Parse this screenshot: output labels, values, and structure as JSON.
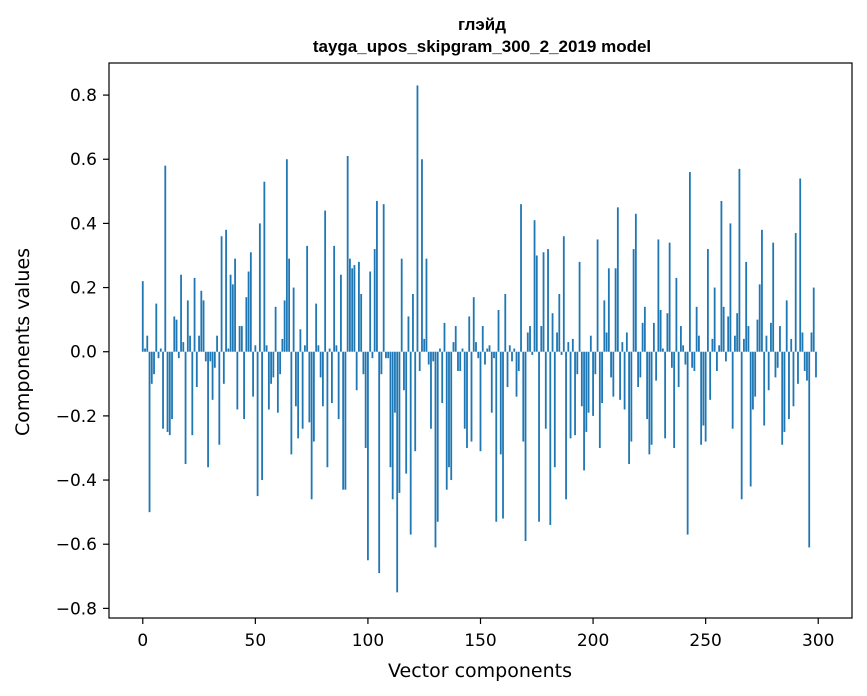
{
  "chart_data": {
    "type": "bar",
    "title": "глэйд",
    "subtitle": "tayga_upos_skipgram_300_2_2019 model",
    "xlabel": "Vector components",
    "ylabel": "Components values",
    "xlim": [
      -15,
      315
    ],
    "ylim": [
      -0.83,
      0.9
    ],
    "xticks": [
      0,
      50,
      100,
      150,
      200,
      250,
      300
    ],
    "xtick_labels": [
      "0",
      "50",
      "100",
      "150",
      "200",
      "250",
      "300"
    ],
    "yticks": [
      -0.8,
      -0.6,
      -0.4,
      -0.2,
      0.0,
      0.2,
      0.4,
      0.6,
      0.8
    ],
    "ytick_labels": [
      "−0.8",
      "−0.6",
      "−0.4",
      "−0.2",
      "0.0",
      "0.2",
      "0.4",
      "0.6",
      "0.8"
    ],
    "bar_color": "#1f77b4",
    "grid": false,
    "x_start": 0,
    "values": [
      0.22,
      0.01,
      0.05,
      -0.5,
      -0.1,
      -0.07,
      0.15,
      -0.02,
      0.01,
      -0.24,
      0.58,
      -0.25,
      -0.26,
      -0.21,
      0.11,
      0.1,
      -0.02,
      0.24,
      0.03,
      -0.35,
      0.16,
      0.05,
      -0.26,
      0.23,
      -0.11,
      0.05,
      0.19,
      0.16,
      -0.03,
      -0.36,
      -0.03,
      -0.15,
      -0.05,
      0.05,
      -0.29,
      0.36,
      -0.1,
      0.38,
      0.01,
      0.24,
      0.21,
      0.29,
      -0.18,
      0.08,
      0.08,
      -0.21,
      0.17,
      0.25,
      0.31,
      -0.14,
      0.02,
      -0.45,
      0.4,
      -0.4,
      0.53,
      0.02,
      -0.18,
      -0.1,
      -0.08,
      0.14,
      -0.19,
      -0.07,
      0.04,
      0.16,
      0.6,
      0.29,
      -0.32,
      0.2,
      -0.17,
      -0.27,
      0.07,
      -0.24,
      0.02,
      0.33,
      -0.22,
      -0.46,
      -0.28,
      0.15,
      0.02,
      -0.08,
      -0.17,
      0.44,
      -0.36,
      0.01,
      -0.16,
      0.33,
      0.02,
      -0.21,
      0.24,
      -0.43,
      -0.43,
      0.61,
      0.29,
      0.26,
      0.27,
      -0.12,
      0.28,
      0.18,
      -0.07,
      -0.3,
      -0.65,
      0.25,
      -0.02,
      0.32,
      0.47,
      -0.69,
      -0.07,
      0.46,
      -0.02,
      -0.02,
      -0.36,
      -0.46,
      -0.19,
      -0.75,
      -0.44,
      0.29,
      -0.12,
      -0.38,
      0.11,
      -0.57,
      0.18,
      -0.31,
      0.83,
      -0.06,
      0.6,
      0.04,
      0.29,
      -0.04,
      -0.24,
      -0.03,
      -0.61,
      -0.53,
      0.01,
      -0.16,
      0.09,
      -0.43,
      -0.36,
      -0.4,
      0.03,
      0.08,
      -0.06,
      -0.06,
      0.01,
      -0.24,
      -0.3,
      0.11,
      -0.28,
      0.17,
      0.03,
      -0.02,
      -0.31,
      0.08,
      -0.04,
      0.01,
      0.02,
      -0.19,
      -0.02,
      -0.53,
      0.13,
      -0.32,
      -0.52,
      0.18,
      -0.11,
      0.02,
      -0.03,
      0.01,
      -0.14,
      -0.06,
      0.46,
      -0.28,
      -0.59,
      0.06,
      0.08,
      -0.01,
      0.41,
      0.3,
      -0.53,
      0.08,
      0.31,
      -0.24,
      0.32,
      -0.54,
      0.12,
      -0.36,
      0.06,
      0.18,
      -0.01,
      0.36,
      -0.46,
      0.03,
      -0.27,
      0.04,
      -0.26,
      -0.07,
      0.28,
      -0.17,
      -0.37,
      -0.25,
      -0.19,
      0.05,
      -0.2,
      -0.07,
      0.35,
      -0.3,
      -0.16,
      0.16,
      0.06,
      0.26,
      -0.08,
      -0.14,
      0.26,
      0.45,
      -0.15,
      0.03,
      -0.18,
      0.06,
      -0.35,
      -0.28,
      0.32,
      0.43,
      -0.11,
      -0.08,
      0.09,
      0.14,
      -0.21,
      -0.32,
      -0.29,
      0.09,
      -0.09,
      0.35,
      0.13,
      0.01,
      -0.27,
      0.12,
      0.34,
      -0.05,
      -0.3,
      0.23,
      -0.11,
      0.08,
      0.02,
      -0.04,
      -0.57,
      0.56,
      -0.05,
      -0.06,
      0.14,
      0.05,
      -0.29,
      -0.23,
      -0.28,
      0.32,
      -0.15,
      0.04,
      0.2,
      -0.06,
      0.02,
      0.47,
      0.14,
      -0.03,
      0.11,
      0.4,
      -0.24,
      0.05,
      0.12,
      0.57,
      -0.46,
      0.04,
      0.28,
      0.08,
      -0.42,
      -0.18,
      -0.14,
      0.1,
      0.21,
      0.38,
      -0.23,
      0.05,
      -0.12,
      0.09,
      0.34,
      -0.08,
      -0.05,
      0.08,
      -0.29,
      -0.25,
      0.16,
      -0.21,
      0.04,
      -0.17,
      0.37,
      -0.1,
      0.54,
      0.06,
      -0.06,
      -0.09,
      -0.61,
      0.06,
      0.2,
      -0.08
    ]
  }
}
